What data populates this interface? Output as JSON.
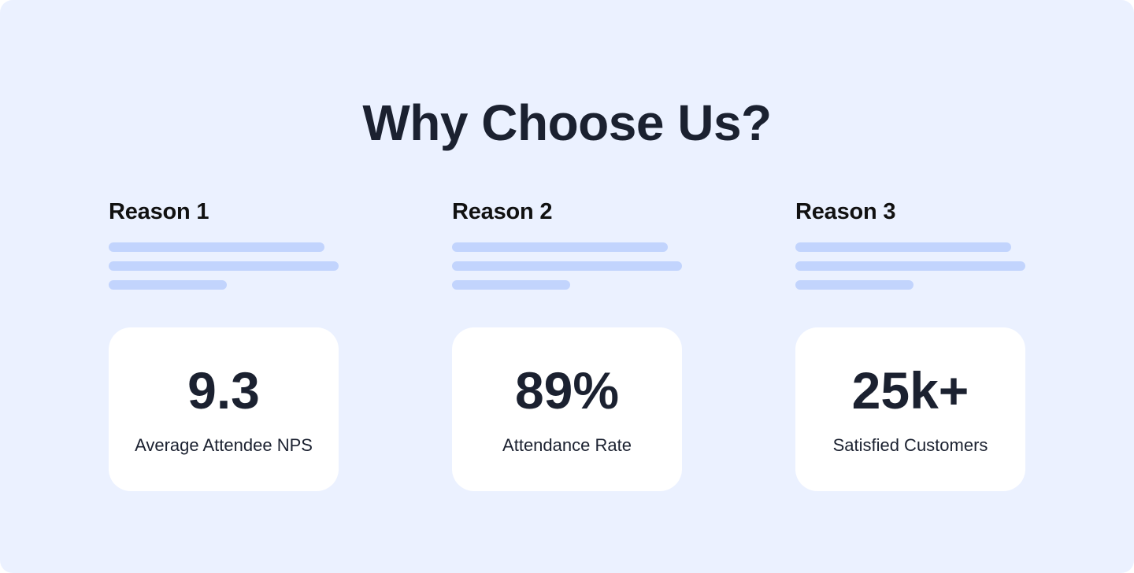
{
  "section": {
    "title": "Why Choose Us?"
  },
  "reasons": [
    {
      "heading": "Reason 1",
      "stat_value": "9.3",
      "stat_label": "Average Attendee NPS"
    },
    {
      "heading": "Reason 2",
      "stat_value": "89%",
      "stat_label": "Attendance Rate"
    },
    {
      "heading": "Reason 3",
      "stat_value": "25k+",
      "stat_label": "Satisfied Customers"
    }
  ],
  "colors": {
    "background": "#ebf1ff",
    "placeholder_line": "#c2d4fd",
    "card": "#ffffff",
    "text": "#1b2130"
  }
}
